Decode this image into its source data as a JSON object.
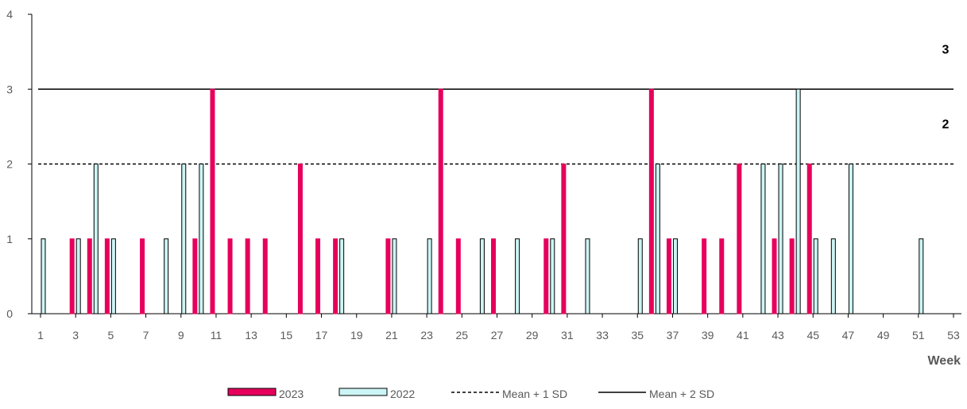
{
  "chart_data": {
    "type": "bar",
    "xlabel": "Week",
    "ylabel": "",
    "ylim": [
      0,
      4
    ],
    "yticks": [
      0,
      1,
      2,
      3,
      4
    ],
    "x": [
      1,
      53
    ],
    "xticks": [
      1,
      3,
      5,
      7,
      9,
      11,
      13,
      15,
      17,
      19,
      21,
      23,
      25,
      27,
      29,
      31,
      33,
      35,
      37,
      39,
      41,
      43,
      45,
      47,
      49,
      51,
      53
    ],
    "series": [
      {
        "name": "2023",
        "color": "#e6005c",
        "points": [
          [
            3,
            1
          ],
          [
            4,
            1
          ],
          [
            5,
            1
          ],
          [
            7,
            1
          ],
          [
            10,
            1
          ],
          [
            11,
            3
          ],
          [
            12,
            1
          ],
          [
            13,
            1
          ],
          [
            14,
            1
          ],
          [
            16,
            2
          ],
          [
            17,
            1
          ],
          [
            18,
            1
          ],
          [
            21,
            1
          ],
          [
            24,
            3
          ],
          [
            25,
            1
          ],
          [
            27,
            1
          ],
          [
            30,
            1
          ],
          [
            31,
            2
          ],
          [
            36,
            3
          ],
          [
            37,
            1
          ],
          [
            39,
            1
          ],
          [
            40,
            1
          ],
          [
            41,
            2
          ],
          [
            43,
            1
          ],
          [
            44,
            1
          ],
          [
            45,
            2
          ]
        ]
      },
      {
        "name": "2022",
        "color": "#ccf5f5",
        "points": [
          [
            1,
            1
          ],
          [
            3,
            1
          ],
          [
            4,
            2
          ],
          [
            5,
            1
          ],
          [
            8,
            1
          ],
          [
            9,
            2
          ],
          [
            10,
            2
          ],
          [
            18,
            1
          ],
          [
            21,
            1
          ],
          [
            23,
            1
          ],
          [
            26,
            1
          ],
          [
            28,
            1
          ],
          [
            30,
            1
          ],
          [
            32,
            1
          ],
          [
            35,
            1
          ],
          [
            36,
            2
          ],
          [
            37,
            1
          ],
          [
            42,
            2
          ],
          [
            43,
            2
          ],
          [
            44,
            3
          ],
          [
            45,
            1
          ],
          [
            46,
            1
          ],
          [
            47,
            2
          ],
          [
            51,
            1
          ]
        ]
      }
    ],
    "reference_lines": [
      {
        "name": "Mean + 1 SD",
        "value": 2,
        "style": "dashed",
        "label": "2"
      },
      {
        "name": "Mean + 2 SD",
        "value": 3,
        "style": "solid",
        "label": "3"
      }
    ],
    "legend_position": "bottom",
    "grid": false
  }
}
